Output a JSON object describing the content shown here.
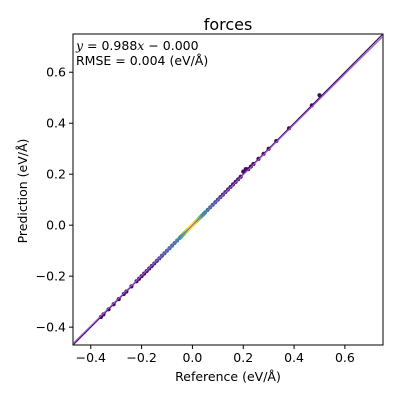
{
  "chart_data": {
    "type": "scatter",
    "title": "forces",
    "xlabel": "Reference (eV/Å)",
    "ylabel": "Prediction (eV/Å)",
    "xlim": [
      -0.47,
      0.75
    ],
    "ylim": [
      -0.47,
      0.75
    ],
    "xticks": [
      -0.4,
      -0.2,
      0.0,
      0.2,
      0.4,
      0.6
    ],
    "yticks": [
      -0.4,
      -0.2,
      0.0,
      0.2,
      0.4,
      0.6
    ],
    "tick_labels": [
      "−0.4",
      "−0.2",
      "0.0",
      "0.2",
      "0.4",
      "0.6"
    ],
    "annotation": {
      "fit_var": "y",
      "fit_rest": " = 0.988",
      "fit_var2": "x",
      "fit_tail": " − 0.000",
      "rmse": "RMSE = 0.004 (eV/Å)"
    },
    "fit": {
      "slope": 0.988,
      "intercept": 0.0,
      "color": "#9b59d0"
    },
    "identity_line": {
      "color": "#3f0a5c"
    },
    "colormap": "viridis",
    "series": [
      {
        "name": "forces",
        "x": [
          -0.36,
          -0.35,
          -0.33,
          -0.31,
          -0.29,
          -0.27,
          -0.26,
          -0.24,
          -0.22,
          -0.21,
          -0.2,
          -0.19,
          -0.18,
          -0.17,
          -0.16,
          -0.15,
          -0.14,
          -0.13,
          -0.12,
          -0.11,
          -0.1,
          -0.09,
          -0.08,
          -0.07,
          -0.06,
          -0.05,
          -0.045,
          -0.04,
          -0.035,
          -0.03,
          -0.025,
          -0.02,
          -0.015,
          -0.01,
          -0.005,
          0.0,
          0.005,
          0.01,
          0.015,
          0.02,
          0.025,
          0.03,
          0.035,
          0.04,
          0.045,
          0.05,
          0.06,
          0.07,
          0.08,
          0.09,
          0.1,
          0.11,
          0.12,
          0.13,
          0.14,
          0.15,
          0.16,
          0.17,
          0.18,
          0.19,
          0.2,
          0.21,
          0.22,
          0.23,
          0.24,
          0.26,
          0.28,
          0.3,
          0.33,
          0.38,
          0.47,
          0.5
        ],
        "y": [
          -0.36,
          -0.35,
          -0.33,
          -0.31,
          -0.29,
          -0.27,
          -0.26,
          -0.24,
          -0.22,
          -0.21,
          -0.2,
          -0.19,
          -0.18,
          -0.17,
          -0.16,
          -0.15,
          -0.14,
          -0.13,
          -0.12,
          -0.11,
          -0.1,
          -0.09,
          -0.08,
          -0.07,
          -0.06,
          -0.05,
          -0.045,
          -0.04,
          -0.035,
          -0.03,
          -0.025,
          -0.02,
          -0.015,
          -0.01,
          -0.005,
          0.0,
          0.005,
          0.01,
          0.015,
          0.02,
          0.025,
          0.03,
          0.035,
          0.04,
          0.045,
          0.05,
          0.06,
          0.07,
          0.08,
          0.09,
          0.1,
          0.11,
          0.12,
          0.13,
          0.14,
          0.15,
          0.16,
          0.17,
          0.18,
          0.19,
          0.21,
          0.22,
          0.22,
          0.23,
          0.24,
          0.26,
          0.28,
          0.3,
          0.33,
          0.38,
          0.47,
          0.51
        ],
        "density": [
          0.02,
          0.02,
          0.02,
          0.02,
          0.02,
          0.02,
          0.02,
          0.03,
          0.03,
          0.03,
          0.03,
          0.04,
          0.05,
          0.06,
          0.08,
          0.1,
          0.15,
          0.2,
          0.25,
          0.3,
          0.35,
          0.4,
          0.42,
          0.45,
          0.5,
          0.55,
          0.62,
          0.7,
          0.75,
          0.8,
          0.85,
          0.9,
          0.95,
          1.0,
          1.0,
          1.0,
          0.98,
          0.95,
          0.9,
          0.85,
          0.8,
          0.72,
          0.65,
          0.6,
          0.55,
          0.5,
          0.45,
          0.4,
          0.35,
          0.28,
          0.22,
          0.18,
          0.14,
          0.12,
          0.1,
          0.08,
          0.06,
          0.05,
          0.04,
          0.04,
          0.03,
          0.03,
          0.03,
          0.02,
          0.02,
          0.02,
          0.02,
          0.02,
          0.02,
          0.02,
          0.02,
          0.02
        ]
      }
    ]
  }
}
